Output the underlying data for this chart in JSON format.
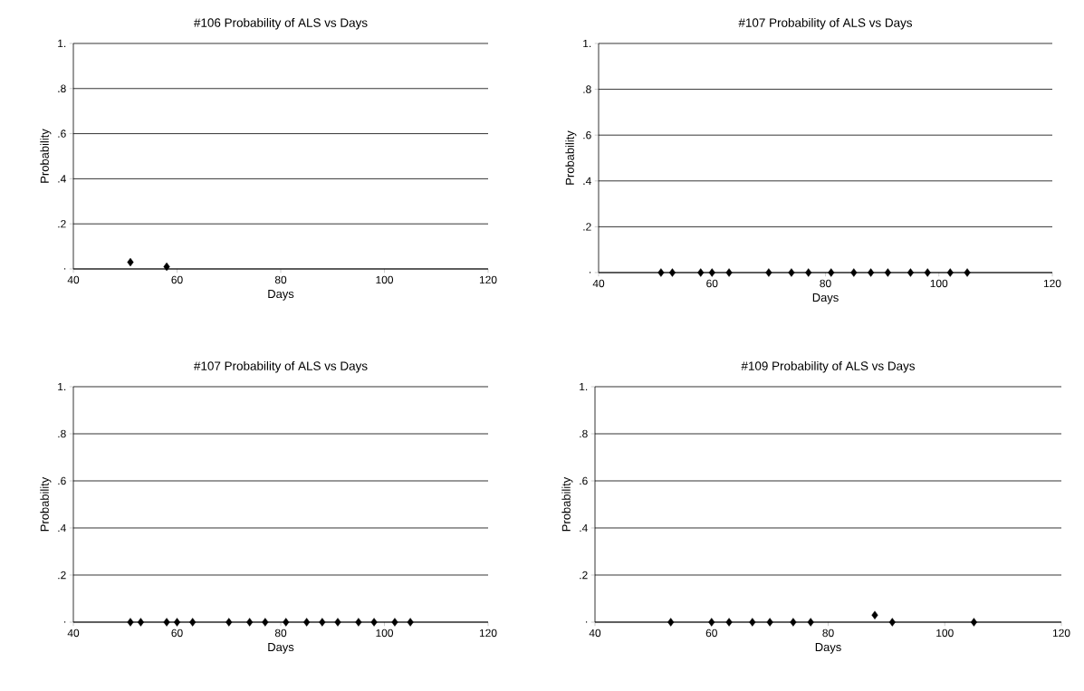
{
  "chart_data": [
    {
      "type": "scatter",
      "title": "#106 Probability of ALS vs Days",
      "xlabel": "Days",
      "ylabel": "Probability",
      "x": [
        51,
        58
      ],
      "values": [
        0.03,
        0.01
      ],
      "color": "#000000",
      "xlim": [
        40,
        120
      ],
      "ylim": [
        0,
        1
      ],
      "xticks": [
        40,
        60,
        80,
        100,
        120
      ],
      "yticks": [
        {
          "value": 0,
          "label": "."
        },
        {
          "value": 0.2,
          "label": ".2"
        },
        {
          "value": 0.4,
          "label": ".4"
        },
        {
          "value": 0.6,
          "label": ".6"
        },
        {
          "value": 0.8,
          "label": ".8"
        },
        {
          "value": 1,
          "label": "1."
        }
      ],
      "grid": "y",
      "marker": "diamond"
    },
    {
      "type": "scatter",
      "title": "#107 Probability of ALS vs Days",
      "xlabel": "Days",
      "ylabel": "Probability",
      "x": [
        51,
        53,
        58,
        60,
        63,
        70,
        74,
        77,
        81,
        85,
        88,
        91,
        95,
        98,
        102,
        105
      ],
      "values": [
        0,
        0,
        0,
        0,
        0,
        0,
        0,
        0,
        0,
        0,
        0,
        0,
        0,
        0,
        0,
        0
      ],
      "color": "#000000",
      "xlim": [
        40,
        120
      ],
      "ylim": [
        0,
        1
      ],
      "xticks": [
        40,
        60,
        80,
        100,
        120
      ],
      "yticks": [
        {
          "value": 0,
          "label": "."
        },
        {
          "value": 0.2,
          "label": ".2"
        },
        {
          "value": 0.4,
          "label": ".4"
        },
        {
          "value": 0.6,
          "label": ".6"
        },
        {
          "value": 0.8,
          "label": ".8"
        },
        {
          "value": 1,
          "label": "1."
        }
      ],
      "grid": "y",
      "marker": "diamond"
    },
    {
      "type": "scatter",
      "title": "#107 Probability of ALS vs Days",
      "xlabel": "Days",
      "ylabel": "Probability",
      "x": [
        51,
        53,
        58,
        60,
        63,
        70,
        74,
        77,
        81,
        85,
        88,
        91,
        95,
        98,
        102,
        105
      ],
      "values": [
        0,
        0,
        0,
        0,
        0,
        0,
        0,
        0,
        0,
        0,
        0,
        0,
        0,
        0,
        0,
        0
      ],
      "color": "#000000",
      "xlim": [
        40,
        120
      ],
      "ylim": [
        0,
        1
      ],
      "xticks": [
        40,
        60,
        80,
        100,
        120
      ],
      "yticks": [
        {
          "value": 0,
          "label": "."
        },
        {
          "value": 0.2,
          "label": ".2"
        },
        {
          "value": 0.4,
          "label": ".4"
        },
        {
          "value": 0.6,
          "label": ".6"
        },
        {
          "value": 0.8,
          "label": ".8"
        },
        {
          "value": 1,
          "label": "1."
        }
      ],
      "grid": "y",
      "marker": "diamond"
    },
    {
      "type": "scatter",
      "title": "#109 Probability of ALS vs Days",
      "xlabel": "Days",
      "ylabel": "Probability",
      "x": [
        53,
        60,
        63,
        67,
        70,
        74,
        77,
        88,
        91,
        105
      ],
      "values": [
        0,
        0,
        0,
        0,
        0,
        0,
        0,
        0.03,
        0,
        0
      ],
      "color": "#000000",
      "xlim": [
        40,
        120
      ],
      "ylim": [
        0,
        1
      ],
      "xticks": [
        40,
        60,
        80,
        100,
        120
      ],
      "yticks": [
        {
          "value": 0,
          "label": "."
        },
        {
          "value": 0.2,
          "label": ".2"
        },
        {
          "value": 0.4,
          "label": ".4"
        },
        {
          "value": 0.6,
          "label": ".6"
        },
        {
          "value": 0.8,
          "label": ".8"
        },
        {
          "value": 1,
          "label": "1."
        }
      ],
      "grid": "y",
      "marker": "diamond"
    }
  ]
}
